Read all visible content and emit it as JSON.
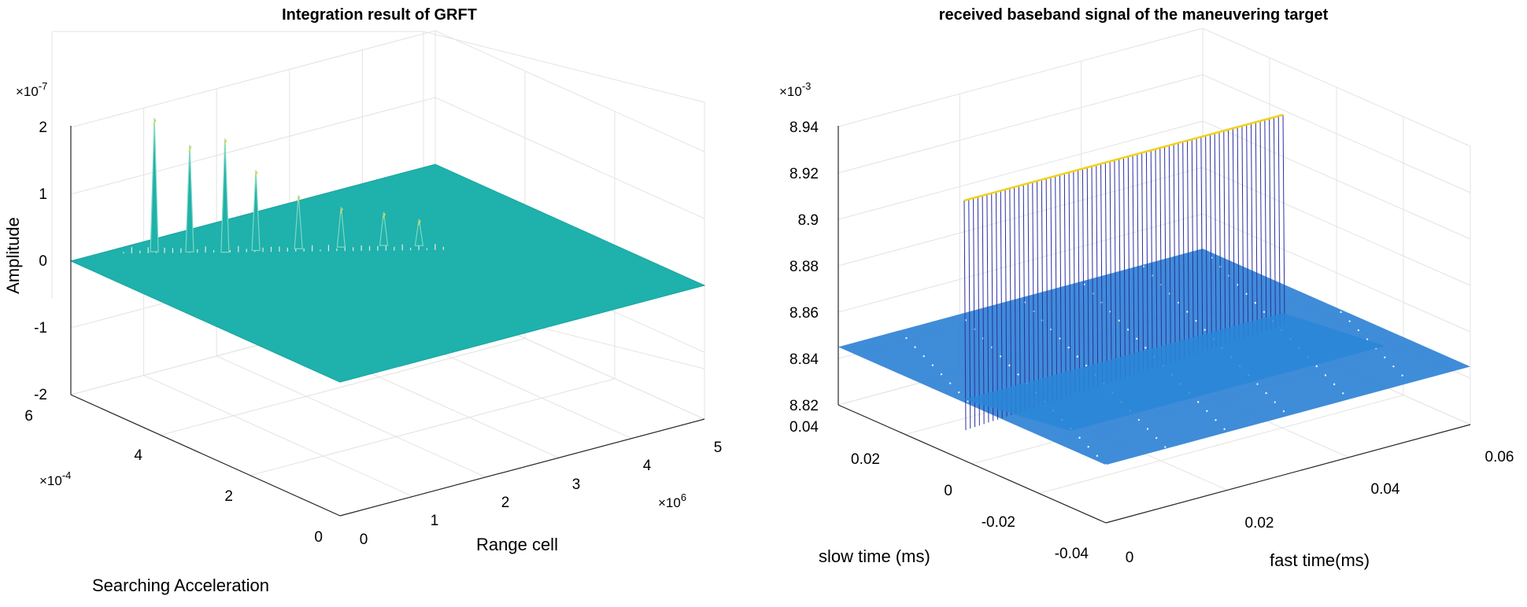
{
  "chart_data": [
    {
      "type": "surface3d",
      "title": "Integration result of GRFT",
      "zlabel": "Amplitude",
      "xlabel": "Range cell",
      "ylabel": "Searching Acceleration",
      "zscale": "×10^-7",
      "xscale": "×10^6",
      "yscale": "×10^-4",
      "z_ticks": [
        "2",
        "1",
        "0",
        "-1",
        "-2"
      ],
      "x_ticks": [
        "0",
        "1",
        "2",
        "3",
        "4",
        "5"
      ],
      "y_ticks": [
        "6",
        "4",
        "2",
        "0"
      ],
      "z_exponent_base": "×10",
      "z_exponent_power": "-7",
      "x_exponent_base": "×10",
      "x_exponent_power": "6",
      "y_exponent_base": "×10",
      "y_exponent_power": "-4",
      "zlim": [
        -2,
        2
      ],
      "xlim": [
        0,
        5
      ],
      "ylim": [
        0,
        6
      ],
      "surface_color": "#1fb1ac",
      "peaks": [
        {
          "x": 0.9,
          "y": 5.6,
          "z": 2.0
        },
        {
          "x": 1.2,
          "y": 5.3,
          "z": 1.6
        },
        {
          "x": 1.5,
          "y": 5.0,
          "z": 1.7
        },
        {
          "x": 1.8,
          "y": 4.8,
          "z": 1.2
        },
        {
          "x": 2.2,
          "y": 4.5,
          "z": 0.8
        },
        {
          "x": 2.6,
          "y": 4.2,
          "z": 0.6
        },
        {
          "x": 3.0,
          "y": 3.9,
          "z": 0.5
        },
        {
          "x": 3.3,
          "y": 3.6,
          "z": 0.4
        }
      ]
    },
    {
      "type": "mesh3d",
      "title": "received baseband signal of the maneuvering target",
      "xlabel": "fast time(ms)",
      "ylabel": "slow time (ms)",
      "zscale": "×10^-3",
      "z_ticks": [
        "8.94",
        "8.92",
        "8.9",
        "8.88",
        "8.86",
        "8.84",
        "8.82"
      ],
      "x_ticks": [
        "0",
        "0.02",
        "0.04",
        "0.06"
      ],
      "y_ticks": [
        "0.04",
        "0.02",
        "0",
        "-0.02",
        "-0.04"
      ],
      "z_exponent_base": "×10",
      "z_exponent_power": "-3",
      "zlim": [
        8.82,
        8.94
      ],
      "xlim": [
        0,
        0.06
      ],
      "ylim": [
        -0.04,
        0.04
      ],
      "baseline_z": 8.845,
      "peak_z": 8.94,
      "mesh_color": "#2a7fd4",
      "wall_color": "#2b2fa0",
      "top_color": "#f2d11b"
    }
  ]
}
